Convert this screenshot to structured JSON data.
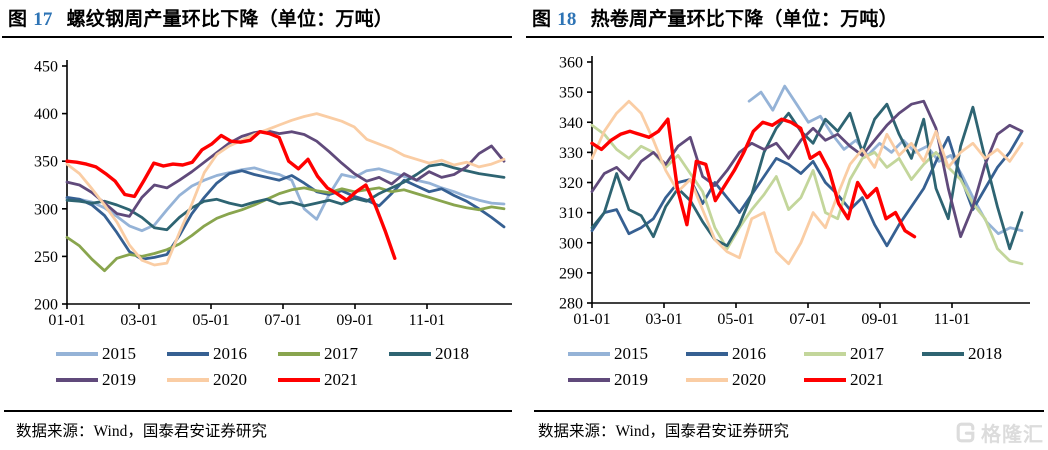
{
  "colors": {
    "figure_number_blue": "#2E74B5",
    "axis_black": "#000000",
    "logo_gray": "#DCDCDC",
    "y2015": "#95B3D7",
    "y2016": "#366092",
    "y2017_rebar": "#89A54E",
    "y2017_hrc": "#C3D69B",
    "y2018": "#2E6472",
    "y2019": "#604A7B",
    "y2020": "#FACDA4",
    "y2021": "#FF0000"
  },
  "figures": [
    {
      "label_prefix": "图",
      "number": "17",
      "title": "螺纹钢周产量环比下降（单位：万吨）",
      "source_note": "数据来源：Wind，国泰君安证券研究"
    },
    {
      "label_prefix": "图",
      "number": "18",
      "title": "热卷周产量环比下降（单位：万吨）",
      "source_note": "数据来源：Wind，国泰君安证券研究"
    }
  ],
  "logo": {
    "text": "格隆汇",
    "icon": "gelonghui-g"
  },
  "chart_data": [
    {
      "type": "line",
      "title": "图 17 螺纹钢周产量环比下降（单位：万吨）",
      "unit": "万吨",
      "ylim": [
        200,
        450
      ],
      "y_ticks": [
        200,
        250,
        300,
        350,
        400,
        450
      ],
      "x_ticks": [
        "01-01",
        "03-01",
        "05-01",
        "07-01",
        "09-01",
        "11-01"
      ],
      "x_unit": "week-of-year",
      "grid": false,
      "legend_position": "bottom",
      "series": [
        {
          "name": "2015",
          "color": "#95B3D7",
          "stroke_width": 2.8,
          "start_week": 0,
          "end_week": 52,
          "values": [
            311,
            310,
            307,
            301,
            292,
            282,
            277,
            283,
            299,
            314,
            324,
            330,
            335,
            338,
            341,
            343,
            339,
            336,
            330,
            300,
            289,
            315,
            336,
            333,
            340,
            342,
            338,
            334,
            330,
            327,
            322,
            318,
            313,
            309,
            306,
            305
          ]
        },
        {
          "name": "2016",
          "color": "#366092",
          "stroke_width": 2.8,
          "start_week": 0,
          "end_week": 52,
          "values": [
            312,
            310,
            304,
            293,
            275,
            255,
            247,
            249,
            252,
            272,
            295,
            312,
            327,
            337,
            340,
            336,
            333,
            330,
            335,
            327,
            318,
            315,
            319,
            313,
            309,
            303,
            316,
            330,
            324,
            318,
            321,
            314,
            308,
            300,
            291,
            281
          ]
        },
        {
          "name": "2017",
          "color": "#89A54E",
          "stroke_width": 2.8,
          "start_week": 0,
          "end_week": 52,
          "values": [
            270,
            261,
            247,
            235,
            248,
            252,
            250,
            253,
            257,
            263,
            272,
            282,
            290,
            295,
            299,
            304,
            310,
            316,
            320,
            322,
            319,
            317,
            321,
            318,
            320,
            322,
            318,
            320,
            316,
            312,
            308,
            304,
            301,
            299,
            302,
            300
          ]
        },
        {
          "name": "2018",
          "color": "#2E6472",
          "stroke_width": 2.8,
          "start_week": 0,
          "end_week": 52,
          "values": [
            309,
            308,
            306,
            308,
            304,
            299,
            291,
            280,
            278,
            291,
            301,
            308,
            310,
            306,
            303,
            307,
            310,
            305,
            307,
            303,
            306,
            309,
            305,
            311,
            308,
            316,
            322,
            328,
            336,
            345,
            347,
            343,
            340,
            337,
            335,
            333
          ]
        },
        {
          "name": "2019",
          "color": "#604A7B",
          "stroke_width": 2.8,
          "start_week": 0,
          "end_week": 52,
          "values": [
            328,
            325,
            317,
            306,
            295,
            292,
            312,
            325,
            322,
            330,
            339,
            349,
            359,
            369,
            376,
            380,
            382,
            379,
            381,
            378,
            371,
            360,
            348,
            337,
            329,
            333,
            326,
            337,
            330,
            339,
            333,
            336,
            344,
            358,
            366,
            350
          ]
        },
        {
          "name": "2020",
          "color": "#FACDA4",
          "stroke_width": 2.8,
          "start_week": 0,
          "end_week": 52,
          "values": [
            347,
            337,
            321,
            304,
            286,
            262,
            246,
            241,
            243,
            275,
            305,
            338,
            357,
            366,
            372,
            378,
            383,
            388,
            393,
            397,
            400,
            396,
            392,
            386,
            373,
            368,
            363,
            356,
            352,
            348,
            351,
            346,
            349,
            344,
            347,
            352
          ]
        },
        {
          "name": "2021",
          "color": "#FF0000",
          "stroke_width": 3.4,
          "start_week": 0,
          "end_week": 39,
          "values": [
            350,
            349,
            347,
            344,
            337,
            329,
            315,
            313,
            330,
            348,
            345,
            347,
            346,
            349,
            362,
            368,
            377,
            371,
            370,
            372,
            381,
            379,
            375,
            350,
            342,
            352,
            334,
            322,
            316,
            309,
            318,
            325,
            303,
            277,
            248
          ]
        }
      ]
    },
    {
      "type": "line",
      "title": "图 18 热卷周产量环比下降（单位：万吨）",
      "unit": "万吨",
      "ylim": [
        280,
        360
      ],
      "y_ticks": [
        280,
        290,
        300,
        310,
        320,
        330,
        340,
        350,
        360
      ],
      "x_ticks": [
        "01-01",
        "03-01",
        "05-01",
        "07-01",
        "09-01",
        "11-01"
      ],
      "x_unit": "week-of-year",
      "grid": false,
      "legend_position": "bottom",
      "series": [
        {
          "name": "2015",
          "color": "#95B3D7",
          "stroke_width": 2.8,
          "start_week": 19,
          "end_week": 52,
          "values": [
            347,
            350,
            344,
            352,
            346,
            340,
            342,
            336,
            331,
            334,
            329,
            333,
            330,
            334,
            330,
            332,
            327,
            329,
            322,
            314,
            307,
            303,
            305,
            304
          ]
        },
        {
          "name": "2016",
          "color": "#366092",
          "stroke_width": 2.8,
          "start_week": 0,
          "end_week": 52,
          "values": [
            304,
            310,
            311,
            303,
            305,
            308,
            315,
            320,
            321,
            313,
            320,
            315,
            310,
            316,
            322,
            328,
            326,
            323,
            327,
            320,
            316,
            311,
            315,
            306,
            299,
            306,
            312,
            318,
            327,
            335,
            322,
            311,
            318,
            325,
            330,
            337
          ]
        },
        {
          "name": "2017",
          "color": "#C3D69B",
          "stroke_width": 2.8,
          "start_week": 0,
          "end_week": 52,
          "values": [
            339,
            336,
            331,
            328,
            332,
            330,
            325,
            329,
            323,
            317,
            305,
            298,
            305,
            311,
            316,
            322,
            311,
            315,
            324,
            310,
            308,
            321,
            328,
            330,
            325,
            328,
            321,
            326,
            330,
            325,
            321,
            313,
            308,
            298,
            294,
            293
          ]
        },
        {
          "name": "2018",
          "color": "#2E6472",
          "stroke_width": 2.8,
          "start_week": 0,
          "end_week": 52,
          "values": [
            305,
            310,
            323,
            311,
            309,
            302,
            312,
            318,
            314,
            307,
            301,
            299,
            306,
            316,
            330,
            338,
            343,
            337,
            333,
            341,
            337,
            343,
            330,
            341,
            346,
            336,
            328,
            341,
            318,
            308,
            332,
            345,
            328,
            312,
            298,
            310
          ]
        },
        {
          "name": "2019",
          "color": "#604A7B",
          "stroke_width": 2.8,
          "start_week": 0,
          "end_week": 52,
          "values": [
            317,
            323,
            325,
            321,
            327,
            330,
            326,
            332,
            335,
            322,
            319,
            324,
            330,
            333,
            331,
            333,
            328,
            334,
            338,
            334,
            336,
            332,
            329,
            334,
            339,
            343,
            346,
            347,
            338,
            318,
            302,
            312,
            326,
            336,
            339,
            337
          ]
        },
        {
          "name": "2020",
          "color": "#FACDA4",
          "stroke_width": 2.8,
          "start_week": 0,
          "end_week": 52,
          "values": [
            328,
            337,
            343,
            347,
            343,
            334,
            324,
            317,
            321,
            311,
            301,
            297,
            295,
            308,
            310,
            297,
            293,
            300,
            310,
            305,
            316,
            326,
            331,
            325,
            336,
            329,
            333,
            327,
            337,
            325,
            330,
            333,
            328,
            331,
            327,
            333
          ]
        },
        {
          "name": "2021",
          "color": "#FF0000",
          "stroke_width": 3.4,
          "start_week": 0,
          "end_week": 39,
          "values": [
            333,
            331,
            334,
            336,
            337,
            336,
            335,
            337,
            341,
            318,
            306,
            327,
            326,
            314,
            319,
            324,
            330,
            337,
            340,
            339,
            341,
            340,
            338,
            328,
            330,
            324,
            313,
            308,
            320,
            315,
            318,
            308,
            310,
            304,
            302
          ]
        }
      ]
    }
  ]
}
